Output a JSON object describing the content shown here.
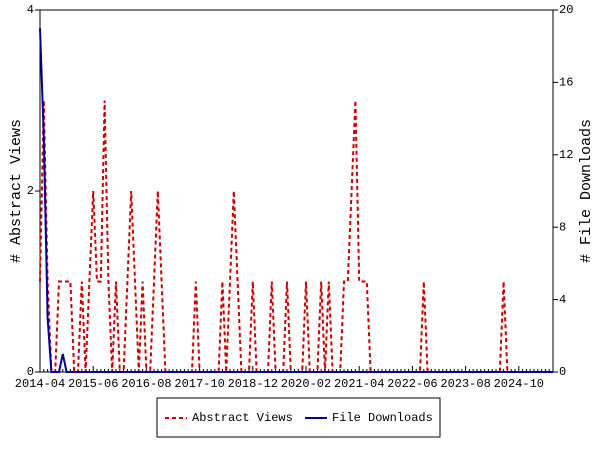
{
  "chart_data": {
    "type": "line",
    "categories": [
      "2014-04",
      null,
      null,
      null,
      null,
      null,
      null,
      null,
      null,
      null,
      null,
      null,
      null,
      null,
      "2015-06",
      null,
      null,
      null,
      null,
      null,
      null,
      null,
      null,
      null,
      null,
      null,
      null,
      null,
      "2016-08",
      null,
      null,
      null,
      null,
      null,
      null,
      null,
      null,
      null,
      null,
      null,
      null,
      null,
      "2017-10",
      null,
      null,
      null,
      null,
      null,
      null,
      null,
      null,
      null,
      null,
      null,
      null,
      null,
      "2018-12",
      null,
      null,
      null,
      null,
      null,
      null,
      null,
      null,
      null,
      null,
      null,
      null,
      null,
      "2020-02",
      null,
      null,
      null,
      null,
      null,
      null,
      null,
      null,
      null,
      null,
      null,
      null,
      null,
      "2021-04",
      null,
      null,
      null,
      null,
      null,
      null,
      null,
      null,
      null,
      null,
      null,
      null,
      null,
      "2022-06",
      null,
      null,
      null,
      null,
      null,
      null,
      null,
      null,
      null,
      null,
      null,
      null,
      null,
      "2023-08",
      null,
      null,
      null,
      null,
      null,
      null,
      null,
      null,
      null,
      null,
      null,
      null,
      null,
      "2024-10",
      null,
      null,
      null,
      null,
      null,
      null,
      null,
      null,
      null
    ],
    "ylabel": "# Abstract Views",
    "y2label": "# File Downloads",
    "ylim": [
      0,
      4
    ],
    "yticks": [
      0,
      2,
      4
    ],
    "y2lim": [
      0,
      20
    ],
    "y2ticks": [
      0,
      4,
      8,
      12,
      16,
      20
    ],
    "legend": "bottom",
    "series": [
      {
        "name": "Abstract Views",
        "color": "#cc0000",
        "dashed": true,
        "values": [
          1,
          3,
          1,
          0,
          0,
          1,
          1,
          1,
          1,
          0,
          0,
          1,
          0,
          1,
          2,
          1,
          1,
          3,
          1,
          0,
          1,
          0,
          0,
          1,
          2,
          1,
          0,
          1,
          0,
          0,
          1,
          2,
          1,
          0,
          0,
          0,
          0,
          0,
          0,
          0,
          0,
          1,
          0,
          0,
          0,
          0,
          0,
          0,
          1,
          0,
          1,
          2,
          1,
          0,
          0,
          0,
          1,
          0,
          0,
          0,
          0,
          1,
          0,
          0,
          0,
          1,
          0,
          0,
          0,
          0,
          1,
          0,
          0,
          0,
          1,
          0,
          1,
          0,
          0,
          0,
          1,
          1,
          2,
          3,
          1,
          1,
          1,
          0,
          0,
          0,
          0,
          0,
          0,
          0,
          0,
          0,
          0,
          0,
          0,
          0,
          0,
          1,
          0,
          0,
          0,
          0,
          0,
          0,
          0,
          0,
          0,
          0,
          0,
          0,
          0,
          0,
          0,
          0,
          0,
          0,
          0,
          0,
          1,
          0,
          0,
          0,
          0,
          0,
          0,
          0,
          0,
          0,
          0,
          0,
          0,
          0
        ]
      },
      {
        "name": "File Downloads",
        "color": "#000099",
        "axis": "y2",
        "values": [
          19,
          13,
          3,
          0,
          0,
          0,
          1,
          0,
          0,
          0,
          0,
          0,
          0,
          0,
          0,
          0,
          0,
          0,
          0,
          0,
          0,
          0,
          0,
          0,
          0,
          0,
          0,
          0,
          0,
          0,
          0,
          0,
          0,
          0,
          0,
          0,
          0,
          0,
          0,
          0,
          0,
          0,
          0,
          0,
          0,
          0,
          0,
          0,
          0,
          0,
          0,
          0,
          0,
          0,
          0,
          0,
          0,
          0,
          0,
          0,
          0,
          0,
          0,
          0,
          0,
          0,
          0,
          0,
          0,
          0,
          0,
          0,
          0,
          0,
          0,
          0,
          0,
          0,
          0,
          0,
          0,
          0,
          0,
          0,
          0,
          0,
          0,
          0,
          0,
          0,
          0,
          0,
          0,
          0,
          0,
          0,
          0,
          0,
          0,
          0,
          0,
          0,
          0,
          0,
          0,
          0,
          0,
          0,
          0,
          0,
          0,
          0,
          0,
          0,
          0,
          0,
          0,
          0,
          0,
          0,
          0,
          0,
          0,
          0,
          0,
          0,
          0,
          0,
          0,
          0,
          0,
          0,
          0,
          0,
          0,
          0
        ]
      }
    ]
  }
}
